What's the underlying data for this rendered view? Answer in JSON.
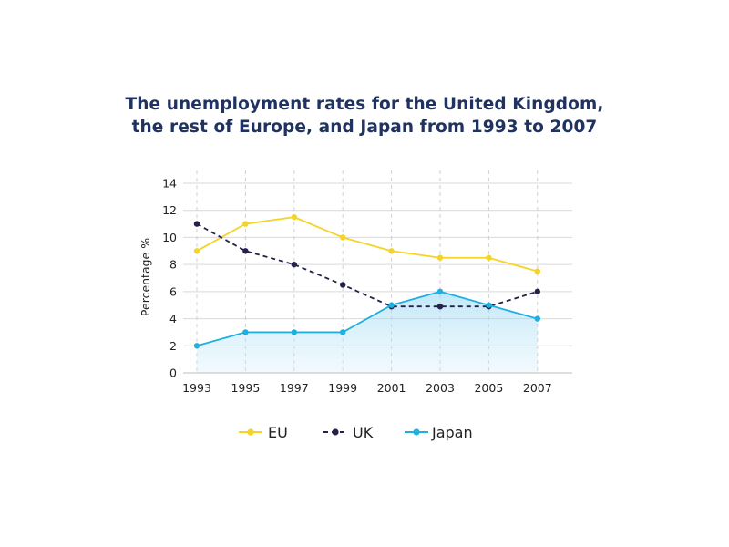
{
  "chart_data": {
    "type": "line",
    "title_lines": [
      "The unemployment rates for the United Kingdom,",
      "the rest of Europe, and Japan from 1993 to 2007"
    ],
    "xlabel": "",
    "ylabel": "Percentage %",
    "categories": [
      "1993",
      "1995",
      "1997",
      "1999",
      "2001",
      "2003",
      "2005",
      "2007"
    ],
    "yticks": [
      0,
      2,
      4,
      6,
      8,
      10,
      12,
      14
    ],
    "ylim": [
      0,
      14
    ],
    "grid": "horizontal solid, vertical dashed",
    "legend_position": "bottom",
    "series": [
      {
        "name": "EU",
        "color": "#f5d327",
        "style": "solid",
        "values": [
          9,
          11,
          11.5,
          10,
          9,
          8.5,
          8.5,
          7.5
        ]
      },
      {
        "name": "UK",
        "color": "#23224a",
        "style": "dashed",
        "values": [
          11,
          9,
          8,
          6.5,
          4.9,
          4.9,
          4.9,
          6
        ]
      },
      {
        "name": "Japan",
        "color": "#1fb0e0",
        "style": "solid",
        "fill": true,
        "values": [
          2,
          3,
          3,
          3,
          5,
          6,
          5,
          4
        ]
      }
    ]
  }
}
